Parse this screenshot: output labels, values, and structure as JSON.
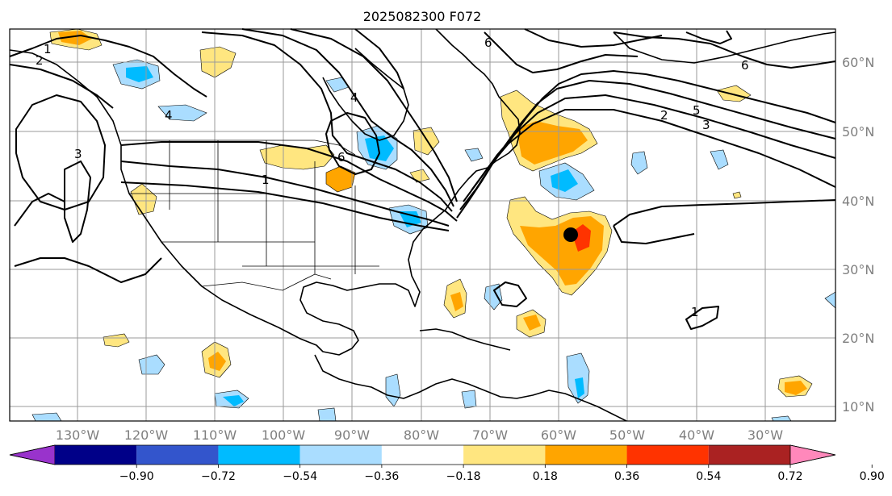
{
  "title": "2025082300 F072",
  "lon_labels": [
    "130°W",
    "120°W",
    "110°W",
    "100°W",
    "90°W",
    "80°W",
    "70°W",
    "60°W",
    "50°W",
    "40°W",
    "30°W"
  ],
  "lat_labels": [
    "60°N",
    "50°N",
    "40°N",
    "30°N",
    "20°N",
    "10°N"
  ],
  "colorbar": {
    "ticks": [
      "−0.90",
      "−0.72",
      "−0.54",
      "−0.36",
      "−0.18",
      "0.18",
      "0.36",
      "0.54",
      "0.72",
      "0.90"
    ],
    "colors": [
      "#9933cc",
      "#000088",
      "#3355cc",
      "#00bbff",
      "#aaddff",
      "#ffffff",
      "#ffe680",
      "#ffa500",
      "#ff3300",
      "#aa2222",
      "#ff88bb"
    ]
  },
  "contour_labels": {
    "a": "1",
    "b": "2",
    "c": "3",
    "d": "4",
    "e": "6",
    "f": "5",
    "g": "6",
    "h": "3",
    "i": "2",
    "j": "4",
    "k": "1",
    "l": "6",
    "m": "1"
  },
  "marker": "storm-center-dot"
}
